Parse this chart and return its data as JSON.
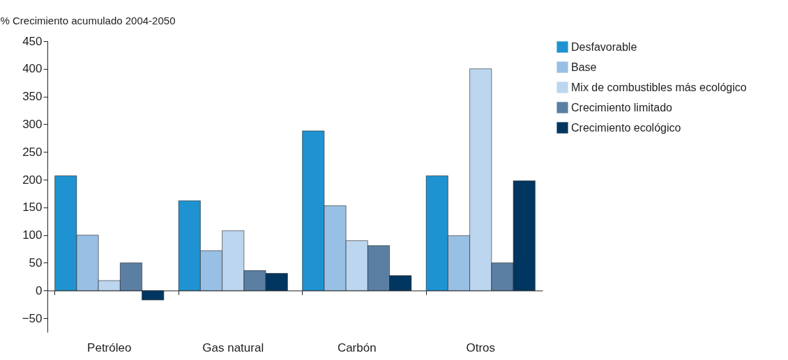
{
  "chart_data": {
    "type": "bar",
    "ylabel": "% Crecimiento acumulado 2004-2050",
    "categories": [
      "Petróleo",
      "Gas natural",
      "Carbón",
      "Otros"
    ],
    "series": [
      {
        "name": "Desfavorable",
        "color": "#1f93d1",
        "values": [
          207,
          162,
          288,
          207
        ]
      },
      {
        "name": "Base",
        "color": "#98bfe4",
        "values": [
          100,
          72,
          153,
          99
        ]
      },
      {
        "name": "Mix de combustibles más ecológico",
        "color": "#bcd6ef",
        "values": [
          18,
          108,
          90,
          400
        ]
      },
      {
        "name": "Crecimiento limitado",
        "color": "#5b7fa3",
        "values": [
          50,
          36,
          81,
          50
        ]
      },
      {
        "name": "Crecimiento ecológico",
        "color": "#003660",
        "values": [
          -17,
          31,
          27,
          198
        ]
      }
    ],
    "ylim": [
      -75,
      450
    ],
    "yticks": [
      -50,
      0,
      50,
      100,
      150,
      200,
      250,
      300,
      350,
      400,
      450
    ],
    "legend": "right"
  }
}
